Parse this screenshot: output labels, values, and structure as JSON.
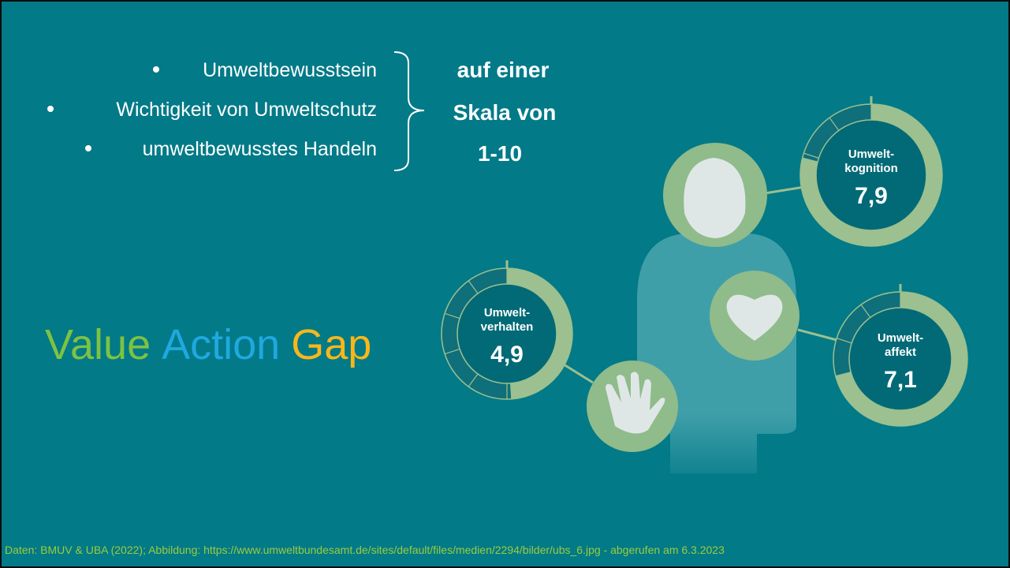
{
  "bullets": [
    "Umweltbewusstsein",
    "Wichtigkeit von Umweltschutz",
    "umweltbewusstes Handeln"
  ],
  "scale_note": [
    "auf einer",
    "Skala von",
    "1-10"
  ],
  "title": [
    {
      "text": "Value",
      "color": "#7dc242"
    },
    {
      "text": "Action",
      "color": "#1fa8e0"
    },
    {
      "text": "Gap",
      "color": "#f8b719"
    }
  ],
  "gauges": [
    {
      "label_lines": [
        "Umwelt-",
        "kognition"
      ],
      "value": 7.9,
      "value_label": "7,9",
      "scale_max": 10
    },
    {
      "label_lines": [
        "Umwelt-",
        "verhalten"
      ],
      "value": 4.9,
      "value_label": "4,9",
      "scale_max": 10
    },
    {
      "label_lines": [
        "Umwelt-",
        "affekt"
      ],
      "value": 7.1,
      "value_label": "7,1",
      "scale_max": 10
    }
  ],
  "footer": "Daten: BMUV & UBA (2022); Abbildung: https://www.umweltbundesamt.de/sites/default/files/medien/2294/bilder/ubs_6.jpg - abgerufen am 6.3.2023"
}
